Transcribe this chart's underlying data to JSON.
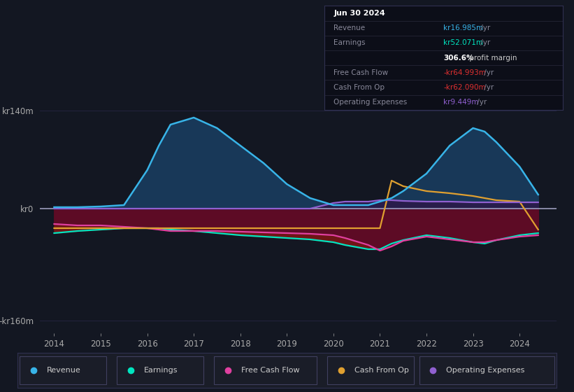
{
  "background_color": "#131722",
  "plot_bg_color": "#131722",
  "title": "Jun 30 2024",
  "x_years": [
    2014,
    2014.5,
    2015,
    2015.5,
    2016,
    2016.25,
    2016.5,
    2017,
    2017.5,
    2018,
    2018.5,
    2019,
    2019.5,
    2020,
    2020.25,
    2020.75,
    2021,
    2021.25,
    2021.5,
    2022,
    2022.5,
    2023,
    2023.25,
    2023.5,
    2024,
    2024.4
  ],
  "revenue": [
    2,
    2,
    3,
    5,
    55,
    90,
    120,
    130,
    115,
    90,
    65,
    35,
    15,
    5,
    5,
    5,
    10,
    15,
    25,
    50,
    90,
    115,
    110,
    95,
    60,
    20
  ],
  "earnings": [
    -35,
    -32,
    -30,
    -28,
    -28,
    -28,
    -30,
    -32,
    -35,
    -38,
    -40,
    -42,
    -44,
    -48,
    -52,
    -58,
    -58,
    -50,
    -45,
    -38,
    -42,
    -48,
    -50,
    -45,
    -38,
    -35
  ],
  "free_cash_flow": [
    -22,
    -24,
    -24,
    -26,
    -28,
    -30,
    -32,
    -32,
    -32,
    -33,
    -34,
    -35,
    -36,
    -38,
    -42,
    -52,
    -60,
    -54,
    -46,
    -40,
    -44,
    -48,
    -48,
    -45,
    -40,
    -38
  ],
  "cash_from_op": [
    -28,
    -28,
    -28,
    -28,
    -28,
    -28,
    -28,
    -28,
    -28,
    -28,
    -28,
    -28,
    -28,
    -28,
    -28,
    -28,
    -28,
    40,
    32,
    25,
    22,
    18,
    15,
    12,
    10,
    -30
  ],
  "operating_expenses": [
    0,
    0,
    0,
    0,
    0,
    0,
    0,
    0,
    0,
    0,
    0,
    0,
    0,
    8,
    10,
    10,
    12,
    12,
    11,
    10,
    10,
    9,
    9,
    9,
    9,
    9
  ],
  "colors": {
    "revenue": "#38b4e8",
    "revenue_fill": "#1a3a5c",
    "earnings": "#00e5c0",
    "earnings_fill_neg": "#7a1a1a",
    "free_cash_flow": "#e040a0",
    "fcf_fill": "#5a0a30",
    "cash_from_op": "#e0a030",
    "operating_expenses": "#9060d0"
  },
  "x_ticks": [
    2014,
    2015,
    2016,
    2017,
    2018,
    2019,
    2020,
    2021,
    2022,
    2023,
    2024
  ],
  "y_ticks_labels": [
    "kr140m",
    "kr0",
    "-kr160m"
  ],
  "y_ticks_vals": [
    140,
    0,
    -160
  ],
  "ylim": [
    -178,
    158
  ],
  "xlim": [
    2013.7,
    2024.8
  ]
}
